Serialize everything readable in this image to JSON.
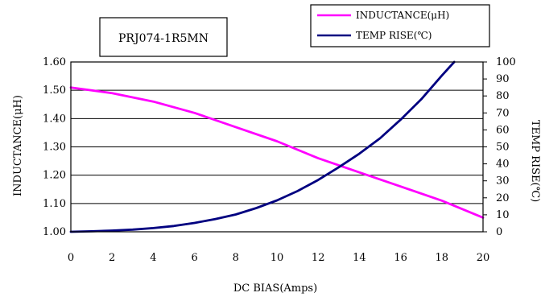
{
  "chart_data": {
    "type": "line",
    "title": "PRJ074-1R5MN",
    "xlabel": "DC BIAS(Amps)",
    "ylabel": "INDUCTANCE(μH)",
    "y2label": "TEMP RISE(℃)",
    "xlim": [
      0,
      20
    ],
    "ylim": [
      1.0,
      1.6
    ],
    "y2lim": [
      0,
      100
    ],
    "x_ticks": [
      "0",
      "2",
      "4",
      "6",
      "8",
      "10",
      "12",
      "14",
      "16",
      "18",
      "20"
    ],
    "y_ticks": [
      "1.00",
      "1.10",
      "1.20",
      "1.30",
      "1.40",
      "1.50",
      "1.60"
    ],
    "y2_ticks": [
      "0",
      "10",
      "20",
      "30",
      "40",
      "50",
      "60",
      "70",
      "80",
      "90",
      "100"
    ],
    "grid": "horizontal",
    "legend_position": "top-right",
    "series": [
      {
        "name": "INDUCTANCE(μH)",
        "axis": "left",
        "color": "#ff00ff",
        "x": [
          0,
          2,
          4,
          6,
          8,
          10,
          12,
          14,
          16,
          18,
          20
        ],
        "y": [
          1.51,
          1.49,
          1.46,
          1.42,
          1.37,
          1.32,
          1.26,
          1.21,
          1.16,
          1.11,
          1.05
        ]
      },
      {
        "name": "TEMP RISE(℃)",
        "axis": "right",
        "color": "#000080",
        "x": [
          0,
          1,
          2,
          3,
          4,
          5,
          6,
          7,
          8,
          9,
          10,
          11,
          12,
          13,
          14,
          15,
          16,
          17,
          18,
          18.6
        ],
        "y": [
          0,
          0.3,
          0.7,
          1.3,
          2.2,
          3.4,
          5.2,
          7.5,
          10.2,
          14,
          18.5,
          24,
          30.5,
          38,
          46,
          55,
          66,
          78,
          92,
          100
        ]
      }
    ]
  }
}
